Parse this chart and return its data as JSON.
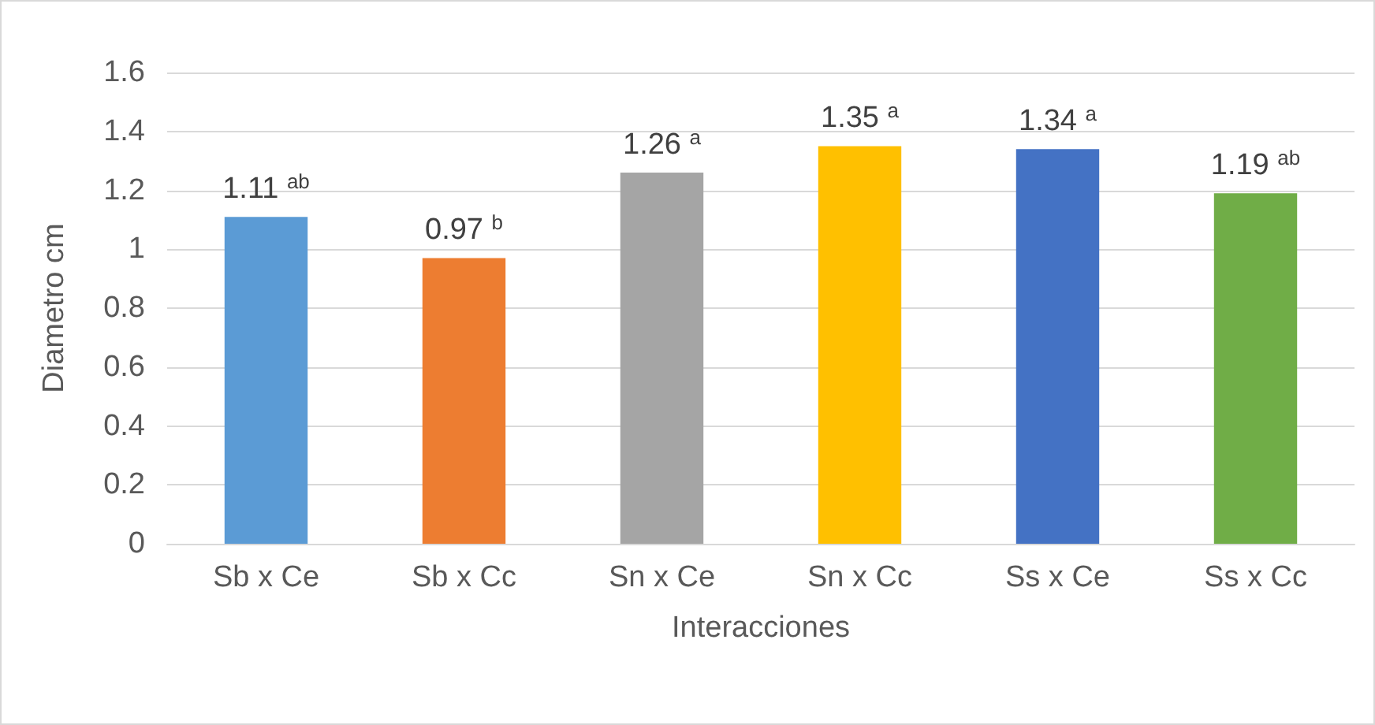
{
  "chart_data": {
    "type": "bar",
    "xlabel": "Interacciones",
    "ylabel": "Diametro cm",
    "categories": [
      "Sb x Ce",
      "Sb x Cc",
      "Sn x Ce",
      "Sn x Cc",
      "Ss x Ce",
      "Ss x Cc"
    ],
    "values": [
      1.11,
      0.97,
      1.26,
      1.35,
      1.34,
      1.19
    ],
    "colors": [
      "#5b9bd5",
      "#ed7d31",
      "#a5a5a5",
      "#ffc000",
      "#4472c4",
      "#70ad47"
    ],
    "value_labels": [
      "1.11 $^{ab}$",
      "0.97 $^{b}$",
      "1.26 $^{a}$",
      "1.35 $^{a}$",
      "1.34 $^{a}$",
      "1.19 $^{ab}$"
    ],
    "ylim": [
      0,
      1.6
    ],
    "yticks": [
      0,
      0.2,
      0.4,
      0.6,
      0.8,
      1,
      1.2,
      1.4,
      1.6
    ],
    "grid": "y"
  }
}
